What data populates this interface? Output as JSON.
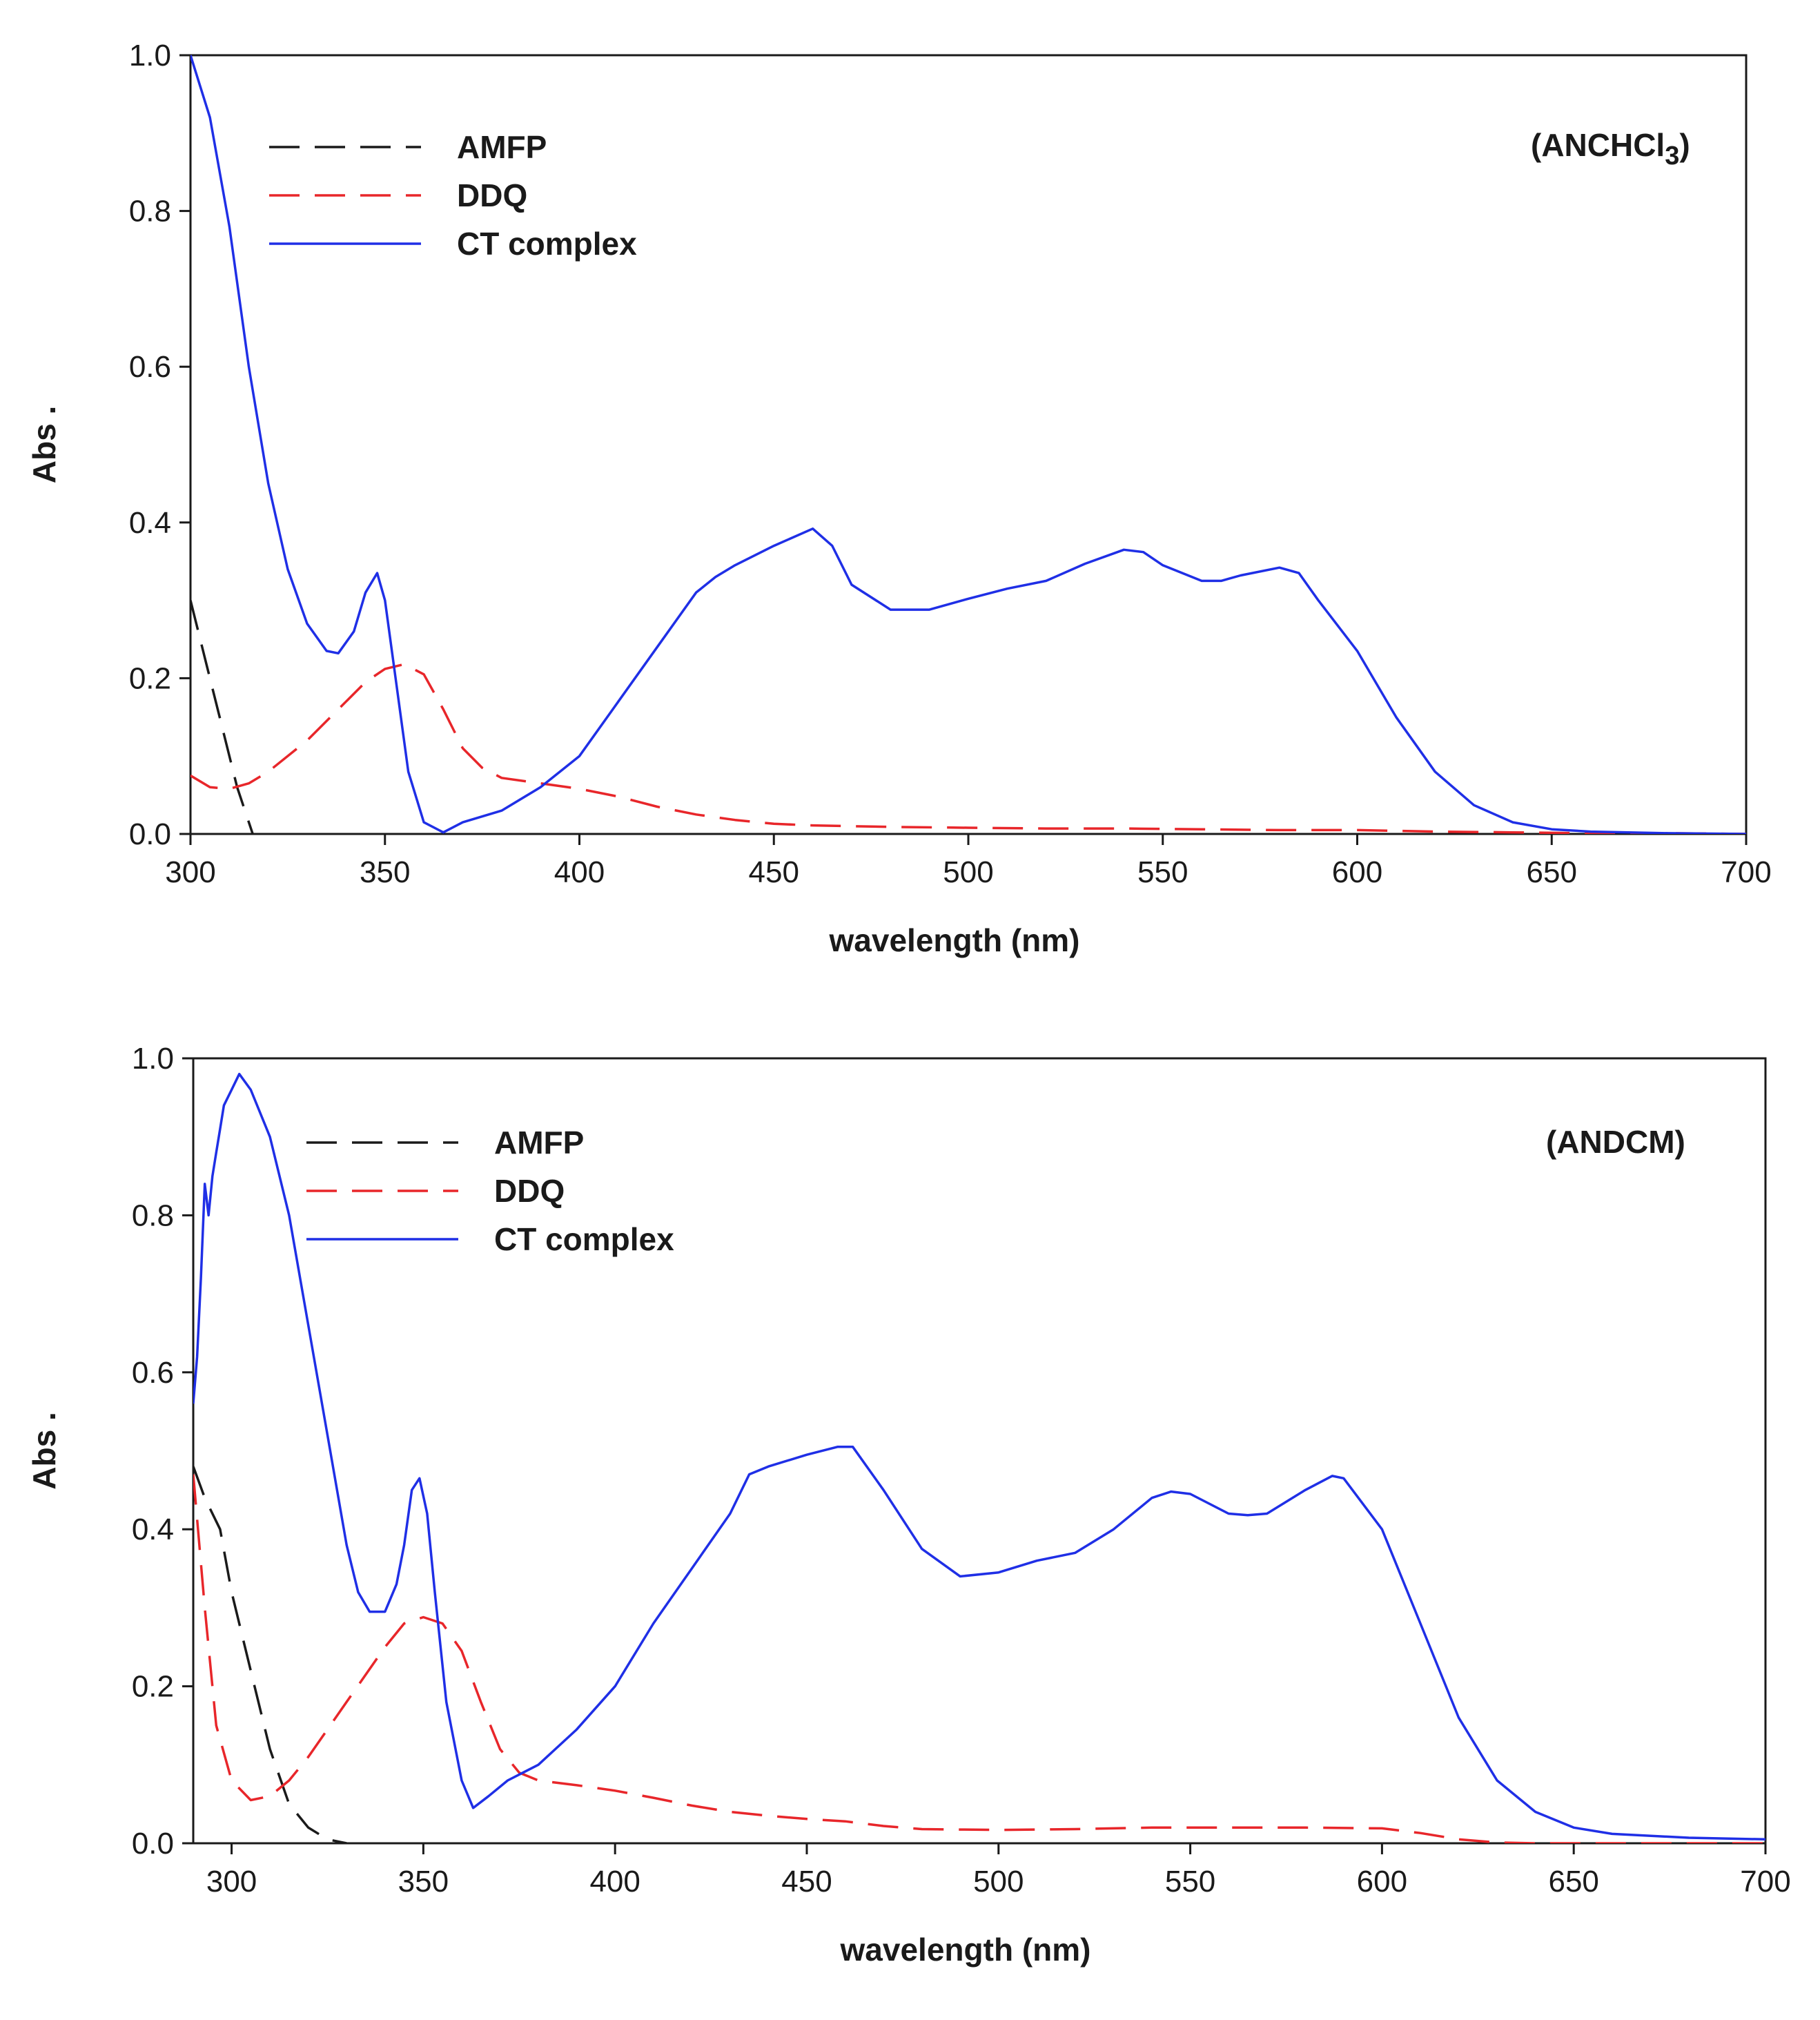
{
  "colors": {
    "AMFP": "#1a1a1a",
    "DDQ": "#e8262a",
    "CT complex": "#1f2fe6"
  },
  "chart_data": [
    {
      "type": "line",
      "annotation": {
        "text": "(ANCHCl",
        "sub": "3",
        "close": ")"
      },
      "xlabel": "wavelength (nm)",
      "ylabel": "Abs .",
      "xlim": [
        300,
        700
      ],
      "ylim": [
        0,
        1.0
      ],
      "xticks": [
        300,
        350,
        400,
        450,
        500,
        550,
        600,
        650,
        700
      ],
      "xtick_labels": [
        "300",
        "350",
        "400",
        "450",
        "500",
        "550",
        "600",
        "650",
        "700"
      ],
      "yticks": [
        0,
        0.2,
        0.4,
        0.6,
        0.8,
        1.0
      ],
      "ytick_labels": [
        "0.0",
        "0.2",
        "0.4",
        "0.6",
        "0.8",
        "1.0"
      ],
      "legend": {
        "position": "top-left",
        "entries": [
          "AMFP",
          "DDQ",
          "CT complex"
        ]
      },
      "series": [
        {
          "name": "AMFP",
          "style": "dashed",
          "x": [
            300,
            304,
            308,
            312,
            316
          ],
          "y": [
            0.3,
            0.22,
            0.14,
            0.06,
            0.0
          ]
        },
        {
          "name": "DDQ",
          "style": "dashed",
          "x": [
            300,
            305,
            310,
            315,
            320,
            330,
            340,
            345,
            350,
            355,
            360,
            365,
            370,
            375,
            380,
            390,
            400,
            410,
            420,
            430,
            440,
            450,
            460,
            480,
            500,
            520,
            540,
            560,
            580,
            600,
            620,
            640,
            660,
            680,
            700
          ],
          "y": [
            0.075,
            0.06,
            0.058,
            0.065,
            0.08,
            0.12,
            0.17,
            0.195,
            0.212,
            0.218,
            0.205,
            0.16,
            0.11,
            0.085,
            0.072,
            0.065,
            0.058,
            0.048,
            0.035,
            0.025,
            0.018,
            0.013,
            0.011,
            0.009,
            0.008,
            0.007,
            0.007,
            0.006,
            0.005,
            0.005,
            0.003,
            0.002,
            0.001,
            0.001,
            0.0
          ]
        },
        {
          "name": "CT complex",
          "style": "solid",
          "x": [
            300,
            305,
            310,
            315,
            320,
            325,
            330,
            335,
            338,
            342,
            345,
            348,
            350,
            353,
            356,
            360,
            365,
            370,
            380,
            390,
            400,
            410,
            420,
            430,
            435,
            440,
            450,
            460,
            465,
            470,
            480,
            490,
            500,
            510,
            520,
            530,
            540,
            545,
            550,
            560,
            565,
            570,
            580,
            585,
            590,
            600,
            610,
            620,
            630,
            640,
            650,
            660,
            680,
            700
          ],
          "y": [
            1.0,
            0.92,
            0.78,
            0.6,
            0.45,
            0.34,
            0.27,
            0.235,
            0.232,
            0.26,
            0.31,
            0.335,
            0.3,
            0.19,
            0.08,
            0.015,
            0.002,
            0.015,
            0.03,
            0.06,
            0.1,
            0.17,
            0.24,
            0.31,
            0.33,
            0.345,
            0.37,
            0.392,
            0.37,
            0.32,
            0.288,
            0.288,
            0.302,
            0.315,
            0.325,
            0.347,
            0.365,
            0.362,
            0.345,
            0.325,
            0.325,
            0.332,
            0.342,
            0.335,
            0.3,
            0.235,
            0.15,
            0.08,
            0.037,
            0.015,
            0.006,
            0.003,
            0.001,
            0.0
          ]
        }
      ]
    },
    {
      "type": "line",
      "annotation": {
        "text": "(ANDCM)",
        "sub": "",
        "close": ""
      },
      "xlabel": "wavelength (nm)",
      "ylabel": "Abs .",
      "xlim": [
        290,
        700
      ],
      "ylim": [
        0,
        1.0
      ],
      "xticks": [
        300,
        350,
        400,
        450,
        500,
        550,
        600,
        650,
        700
      ],
      "xtick_labels": [
        "300",
        "350",
        "400",
        "450",
        "500",
        "550",
        "600",
        "650",
        "700"
      ],
      "yticks": [
        0,
        0.2,
        0.4,
        0.6,
        0.8,
        1.0
      ],
      "ytick_labels": [
        "0.0",
        "0.2",
        "0.4",
        "0.6",
        "0.8",
        "1.0"
      ],
      "legend": {
        "position": "top-left",
        "entries": [
          "AMFP",
          "DDQ",
          "CT complex"
        ]
      },
      "series": [
        {
          "name": "AMFP",
          "style": "dashed",
          "x": [
            290,
            293,
            297,
            300,
            305,
            310,
            315,
            320,
            325,
            330
          ],
          "y": [
            0.48,
            0.44,
            0.4,
            0.32,
            0.22,
            0.12,
            0.05,
            0.02,
            0.005,
            0.0
          ]
        },
        {
          "name": "DDQ",
          "style": "dashed",
          "x": [
            290,
            293,
            296,
            300,
            305,
            310,
            315,
            320,
            330,
            340,
            345,
            350,
            355,
            360,
            365,
            370,
            375,
            380,
            390,
            400,
            410,
            420,
            430,
            440,
            450,
            460,
            470,
            480,
            500,
            520,
            540,
            560,
            580,
            600,
            610,
            620,
            630,
            640,
            660,
            680,
            700
          ],
          "y": [
            0.47,
            0.3,
            0.15,
            0.08,
            0.055,
            0.06,
            0.08,
            0.11,
            0.18,
            0.25,
            0.28,
            0.288,
            0.28,
            0.245,
            0.18,
            0.12,
            0.09,
            0.08,
            0.074,
            0.067,
            0.058,
            0.048,
            0.04,
            0.035,
            0.031,
            0.028,
            0.022,
            0.018,
            0.017,
            0.018,
            0.02,
            0.02,
            0.02,
            0.019,
            0.013,
            0.005,
            0.001,
            0.0,
            0.0,
            0.0,
            0.0
          ]
        },
        {
          "name": "CT complex",
          "style": "solid",
          "x": [
            290,
            291,
            292,
            293,
            294,
            295,
            296,
            297,
            298,
            300,
            302,
            305,
            310,
            315,
            320,
            325,
            330,
            333,
            336,
            340,
            343,
            345,
            347,
            349,
            351,
            353,
            356,
            360,
            363,
            367,
            372,
            380,
            390,
            400,
            410,
            420,
            430,
            435,
            440,
            450,
            458,
            462,
            470,
            480,
            490,
            500,
            510,
            520,
            530,
            540,
            545,
            550,
            560,
            565,
            570,
            580,
            587,
            590,
            600,
            610,
            620,
            630,
            640,
            650,
            660,
            680,
            700
          ],
          "y": [
            0.56,
            0.62,
            0.72,
            0.84,
            0.8,
            0.85,
            0.88,
            0.91,
            0.94,
            0.96,
            0.98,
            0.96,
            0.9,
            0.8,
            0.66,
            0.52,
            0.38,
            0.32,
            0.295,
            0.295,
            0.33,
            0.38,
            0.45,
            0.465,
            0.42,
            0.32,
            0.18,
            0.08,
            0.045,
            0.06,
            0.08,
            0.1,
            0.145,
            0.2,
            0.28,
            0.35,
            0.42,
            0.47,
            0.48,
            0.495,
            0.505,
            0.505,
            0.45,
            0.375,
            0.34,
            0.345,
            0.36,
            0.37,
            0.4,
            0.44,
            0.448,
            0.445,
            0.42,
            0.418,
            0.42,
            0.45,
            0.468,
            0.465,
            0.4,
            0.28,
            0.16,
            0.08,
            0.04,
            0.02,
            0.012,
            0.007,
            0.005
          ]
        }
      ]
    }
  ]
}
